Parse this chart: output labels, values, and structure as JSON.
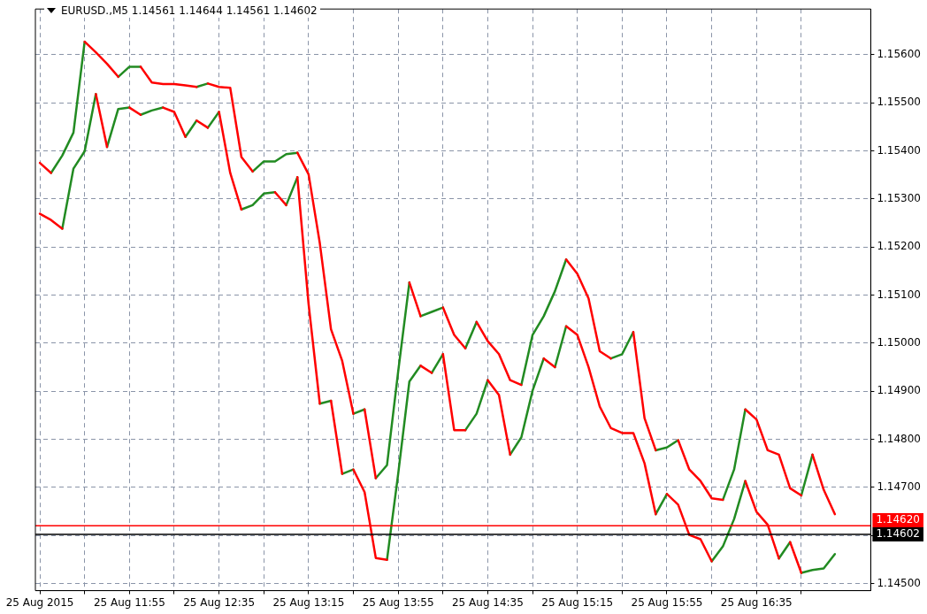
{
  "chart_data": {
    "type": "line",
    "title": "EURUSD.,M5  1.14561 1.14644 1.14561 1.14602",
    "xlim": [
      "2015-08-25T11:13",
      "2015-08-25T17:26"
    ],
    "xticks": [
      {
        "value": "2015-08-25T11:15",
        "label": "25 Aug 2015"
      },
      {
        "value": "2015-08-25T11:35",
        "label": null
      },
      {
        "value": "2015-08-25T11:55",
        "label": "25 Aug 11:55"
      },
      {
        "value": "2015-08-25T12:15",
        "label": null
      },
      {
        "value": "2015-08-25T12:35",
        "label": "25 Aug 12:35"
      },
      {
        "value": "2015-08-25T12:55",
        "label": null
      },
      {
        "value": "2015-08-25T13:15",
        "label": "25 Aug 13:15"
      },
      {
        "value": "2015-08-25T13:35",
        "label": null
      },
      {
        "value": "2015-08-25T13:55",
        "label": "25 Aug 13:55"
      },
      {
        "value": "2015-08-25T14:15",
        "label": null
      },
      {
        "value": "2015-08-25T14:35",
        "label": "25 Aug 14:35"
      },
      {
        "value": "2015-08-25T14:55",
        "label": null
      },
      {
        "value": "2015-08-25T15:15",
        "label": "25 Aug 15:15"
      },
      {
        "value": "2015-08-25T15:35",
        "label": null
      },
      {
        "value": "2015-08-25T15:55",
        "label": "25 Aug 15:55"
      },
      {
        "value": "2015-08-25T16:15",
        "label": null
      },
      {
        "value": "2015-08-25T16:35",
        "label": "25 Aug 16:35"
      },
      {
        "value": "2015-08-25T16:55",
        "label": null
      }
    ],
    "series": [
      {
        "color": "#ff0000",
        "x": [
          "2015-08-25T11:15",
          "2015-08-25T11:20"
        ],
        "values": [
          1.15375,
          1.15354
        ]
      },
      {
        "color": "#ff0000",
        "x": [
          "2015-08-25T11:35",
          "2015-08-25T11:40",
          "2015-08-25T11:45",
          "2015-08-25T11:50"
        ],
        "values": [
          1.15627,
          1.15605,
          1.15581,
          1.15554
        ]
      },
      {
        "color": "#ff0000",
        "x": [
          "2015-08-25T12:00",
          "2015-08-25T12:05",
          "2015-08-25T12:10",
          "2015-08-25T12:15",
          "2015-08-25T12:20",
          "2015-08-25T12:25"
        ],
        "values": [
          1.15575,
          1.15542,
          1.15539,
          1.15539,
          1.15536,
          1.15533
        ]
      },
      {
        "color": "#ff0000",
        "x": [
          "2015-08-25T12:30",
          "2015-08-25T12:35",
          "2015-08-25T12:40",
          "2015-08-25T12:45",
          "2015-08-25T12:50"
        ],
        "values": [
          1.1554,
          1.15533,
          1.15531,
          1.15387,
          1.15357
        ]
      },
      {
        "color": "#ff0000",
        "x": [
          "2015-08-25T13:10",
          "2015-08-25T13:15",
          "2015-08-25T13:20",
          "2015-08-25T13:25",
          "2015-08-25T13:30",
          "2015-08-25T13:35"
        ],
        "values": [
          1.15396,
          1.15351,
          1.15208,
          1.15029,
          1.14963,
          1.14853
        ]
      },
      {
        "color": "#ff0000",
        "x": [
          "2015-08-25T13:40",
          "2015-08-25T13:45"
        ],
        "values": [
          1.14862,
          1.14719
        ]
      },
      {
        "color": "#ff0000",
        "x": [
          "2015-08-25T14:00",
          "2015-08-25T14:05"
        ],
        "values": [
          1.15126,
          1.15056
        ]
      },
      {
        "color": "#ff0000",
        "x": [
          "2015-08-25T14:15",
          "2015-08-25T14:20",
          "2015-08-25T14:25"
        ],
        "values": [
          1.15074,
          1.15017,
          1.14989
        ]
      },
      {
        "color": "#ff0000",
        "x": [
          "2015-08-25T14:30",
          "2015-08-25T14:35",
          "2015-08-25T14:40",
          "2015-08-25T14:45",
          "2015-08-25T14:50"
        ],
        "values": [
          1.15044,
          1.15004,
          1.14977,
          1.14923,
          1.14913
        ]
      },
      {
        "color": "#ff0000",
        "x": [
          "2015-08-25T15:10",
          "2015-08-25T15:15",
          "2015-08-25T15:20",
          "2015-08-25T15:25",
          "2015-08-25T15:30"
        ],
        "values": [
          1.15174,
          1.15144,
          1.15093,
          1.14983,
          1.14968
        ]
      },
      {
        "color": "#ff0000",
        "x": [
          "2015-08-25T15:40",
          "2015-08-25T15:45",
          "2015-08-25T15:50"
        ],
        "values": [
          1.15023,
          1.14844,
          1.14777
        ]
      },
      {
        "color": "#ff0000",
        "x": [
          "2015-08-25T16:00",
          "2015-08-25T16:05",
          "2015-08-25T16:10",
          "2015-08-25T16:15",
          "2015-08-25T16:20"
        ],
        "values": [
          1.14798,
          1.14737,
          1.14713,
          1.14677,
          1.14674
        ]
      },
      {
        "color": "#ff0000",
        "x": [
          "2015-08-25T16:30",
          "2015-08-25T16:35",
          "2015-08-25T16:40",
          "2015-08-25T16:45",
          "2015-08-25T16:50",
          "2015-08-25T16:55"
        ],
        "values": [
          1.14862,
          1.14841,
          1.14777,
          1.14768,
          1.14698,
          1.14683
        ]
      },
      {
        "color": "#ff0000",
        "x": [
          "2015-08-25T17:00",
          "2015-08-25T17:05",
          "2015-08-25T17:10"
        ],
        "values": [
          1.14768,
          1.14695,
          1.14644
        ]
      },
      {
        "color": "#228b22",
        "x": [
          "2015-08-25T11:20",
          "2015-08-25T11:25",
          "2015-08-25T11:30",
          "2015-08-25T11:35"
        ],
        "values": [
          1.15354,
          1.1539,
          1.15438,
          1.15627
        ]
      },
      {
        "color": "#228b22",
        "x": [
          "2015-08-25T11:50",
          "2015-08-25T11:55",
          "2015-08-25T12:00"
        ],
        "values": [
          1.15554,
          1.15575,
          1.15575
        ]
      },
      {
        "color": "#228b22",
        "x": [
          "2015-08-25T12:25",
          "2015-08-25T12:30"
        ],
        "values": [
          1.15533,
          1.1554
        ]
      },
      {
        "color": "#228b22",
        "x": [
          "2015-08-25T12:50",
          "2015-08-25T12:55",
          "2015-08-25T13:00",
          "2015-08-25T13:05",
          "2015-08-25T13:10"
        ],
        "values": [
          1.15357,
          1.15378,
          1.15378,
          1.15393,
          1.15396
        ]
      },
      {
        "color": "#228b22",
        "x": [
          "2015-08-25T13:35",
          "2015-08-25T13:40"
        ],
        "values": [
          1.14853,
          1.14862
        ]
      },
      {
        "color": "#228b22",
        "x": [
          "2015-08-25T13:45",
          "2015-08-25T13:50",
          "2015-08-25T13:55",
          "2015-08-25T14:00"
        ],
        "values": [
          1.14719,
          1.14746,
          1.14941,
          1.15126
        ]
      },
      {
        "color": "#228b22",
        "x": [
          "2015-08-25T14:05",
          "2015-08-25T14:10",
          "2015-08-25T14:15"
        ],
        "values": [
          1.15056,
          1.15065,
          1.15074
        ]
      },
      {
        "color": "#228b22",
        "x": [
          "2015-08-25T14:25",
          "2015-08-25T14:30"
        ],
        "values": [
          1.14989,
          1.15044
        ]
      },
      {
        "color": "#228b22",
        "x": [
          "2015-08-25T14:50",
          "2015-08-25T14:55",
          "2015-08-25T15:00",
          "2015-08-25T15:05",
          "2015-08-25T15:10"
        ],
        "values": [
          1.14913,
          1.15017,
          1.15056,
          1.15108,
          1.15174
        ]
      },
      {
        "color": "#228b22",
        "x": [
          "2015-08-25T15:30",
          "2015-08-25T15:35",
          "2015-08-25T15:40"
        ],
        "values": [
          1.14968,
          1.14977,
          1.15023
        ]
      },
      {
        "color": "#228b22",
        "x": [
          "2015-08-25T15:50",
          "2015-08-25T15:55",
          "2015-08-25T16:00"
        ],
        "values": [
          1.14777,
          1.14783,
          1.14798
        ]
      },
      {
        "color": "#228b22",
        "x": [
          "2015-08-25T16:20",
          "2015-08-25T16:25",
          "2015-08-25T16:30"
        ],
        "values": [
          1.14674,
          1.14737,
          1.14862
        ]
      },
      {
        "color": "#228b22",
        "x": [
          "2015-08-25T16:55",
          "2015-08-25T17:00"
        ],
        "values": [
          1.14683,
          1.14768
        ]
      },
      {
        "color": "#ff0000",
        "x": [
          "2015-08-25T11:15",
          "2015-08-25T11:20",
          "2015-08-25T11:25"
        ],
        "values": [
          1.15269,
          1.15256,
          1.15238
        ]
      },
      {
        "color": "#ff0000",
        "x": [
          "2015-08-25T11:40",
          "2015-08-25T11:45"
        ],
        "values": [
          1.15518,
          1.15408
        ]
      },
      {
        "color": "#ff0000",
        "x": [
          "2015-08-25T11:55",
          "2015-08-25T12:00"
        ],
        "values": [
          1.1549,
          1.15475
        ]
      },
      {
        "color": "#ff0000",
        "x": [
          "2015-08-25T12:10",
          "2015-08-25T12:15",
          "2015-08-25T12:20"
        ],
        "values": [
          1.1549,
          1.15481,
          1.15429
        ]
      },
      {
        "color": "#ff0000",
        "x": [
          "2015-08-25T12:25",
          "2015-08-25T12:30"
        ],
        "values": [
          1.15463,
          1.15448
        ]
      },
      {
        "color": "#ff0000",
        "x": [
          "2015-08-25T12:35",
          "2015-08-25T12:40",
          "2015-08-25T12:45"
        ],
        "values": [
          1.15481,
          1.15354,
          1.15278
        ]
      },
      {
        "color": "#ff0000",
        "x": [
          "2015-08-25T13:00",
          "2015-08-25T13:05"
        ],
        "values": [
          1.15314,
          1.15287
        ]
      },
      {
        "color": "#ff0000",
        "x": [
          "2015-08-25T13:10",
          "2015-08-25T13:15",
          "2015-08-25T13:20"
        ],
        "values": [
          1.15345,
          1.15081,
          1.14874
        ]
      },
      {
        "color": "#ff0000",
        "x": [
          "2015-08-25T13:25",
          "2015-08-25T13:30"
        ],
        "values": [
          1.1488,
          1.14728
        ]
      },
      {
        "color": "#ff0000",
        "x": [
          "2015-08-25T13:35",
          "2015-08-25T13:40",
          "2015-08-25T13:45",
          "2015-08-25T13:50"
        ],
        "values": [
          1.14737,
          1.1469,
          1.14553,
          1.14549
        ]
      },
      {
        "color": "#ff0000",
        "x": [
          "2015-08-25T14:05",
          "2015-08-25T14:10"
        ],
        "values": [
          1.14953,
          1.14938
        ]
      },
      {
        "color": "#ff0000",
        "x": [
          "2015-08-25T14:15",
          "2015-08-25T14:20",
          "2015-08-25T14:25"
        ],
        "values": [
          1.14977,
          1.14819,
          1.14819
        ]
      },
      {
        "color": "#ff0000",
        "x": [
          "2015-08-25T14:35",
          "2015-08-25T14:40",
          "2015-08-25T14:45"
        ],
        "values": [
          1.14923,
          1.14892,
          1.14768
        ]
      },
      {
        "color": "#ff0000",
        "x": [
          "2015-08-25T15:00",
          "2015-08-25T15:05"
        ],
        "values": [
          1.14968,
          1.1495
        ]
      },
      {
        "color": "#ff0000",
        "x": [
          "2015-08-25T15:10",
          "2015-08-25T15:15",
          "2015-08-25T15:20",
          "2015-08-25T15:25",
          "2015-08-25T15:30",
          "2015-08-25T15:35",
          "2015-08-25T15:40",
          "2015-08-25T15:45",
          "2015-08-25T15:50"
        ],
        "values": [
          1.15035,
          1.15017,
          1.1495,
          1.14868,
          1.14823,
          1.14813,
          1.14813,
          1.1475,
          1.14644
        ]
      },
      {
        "color": "#ff0000",
        "x": [
          "2015-08-25T15:55",
          "2015-08-25T16:00",
          "2015-08-25T16:05",
          "2015-08-25T16:10",
          "2015-08-25T16:15"
        ],
        "values": [
          1.14686,
          1.14664,
          1.14601,
          1.14592,
          1.14546
        ]
      },
      {
        "color": "#ff0000",
        "x": [
          "2015-08-25T16:30",
          "2015-08-25T16:35",
          "2015-08-25T16:40",
          "2015-08-25T16:45"
        ],
        "values": [
          1.14713,
          1.14649,
          1.14622,
          1.14552
        ]
      },
      {
        "color": "#ff0000",
        "x": [
          "2015-08-25T16:50",
          "2015-08-25T16:55"
        ],
        "values": [
          1.14586,
          1.14522
        ]
      },
      {
        "color": "#228b22",
        "x": [
          "2015-08-25T11:25",
          "2015-08-25T11:30",
          "2015-08-25T11:35",
          "2015-08-25T11:40"
        ],
        "values": [
          1.15238,
          1.15363,
          1.15399,
          1.15518
        ]
      },
      {
        "color": "#228b22",
        "x": [
          "2015-08-25T11:45",
          "2015-08-25T11:50",
          "2015-08-25T11:55"
        ],
        "values": [
          1.15408,
          1.15487,
          1.1549
        ]
      },
      {
        "color": "#228b22",
        "x": [
          "2015-08-25T12:00",
          "2015-08-25T12:05",
          "2015-08-25T12:10"
        ],
        "values": [
          1.15475,
          1.15484,
          1.1549
        ]
      },
      {
        "color": "#228b22",
        "x": [
          "2015-08-25T12:20",
          "2015-08-25T12:25"
        ],
        "values": [
          1.15429,
          1.15463
        ]
      },
      {
        "color": "#228b22",
        "x": [
          "2015-08-25T12:30",
          "2015-08-25T12:35"
        ],
        "values": [
          1.15448,
          1.15481
        ]
      },
      {
        "color": "#228b22",
        "x": [
          "2015-08-25T12:45",
          "2015-08-25T12:50",
          "2015-08-25T12:55",
          "2015-08-25T13:00"
        ],
        "values": [
          1.15278,
          1.15287,
          1.15311,
          1.15314
        ]
      },
      {
        "color": "#228b22",
        "x": [
          "2015-08-25T13:05",
          "2015-08-25T13:10"
        ],
        "values": [
          1.15287,
          1.15345
        ]
      },
      {
        "color": "#228b22",
        "x": [
          "2015-08-25T13:20",
          "2015-08-25T13:25"
        ],
        "values": [
          1.14874,
          1.1488
        ]
      },
      {
        "color": "#228b22",
        "x": [
          "2015-08-25T13:30",
          "2015-08-25T13:35"
        ],
        "values": [
          1.14728,
          1.14737
        ]
      },
      {
        "color": "#228b22",
        "x": [
          "2015-08-25T13:50",
          "2015-08-25T13:55",
          "2015-08-25T14:00",
          "2015-08-25T14:05"
        ],
        "values": [
          1.14549,
          1.14728,
          1.1492,
          1.14953
        ]
      },
      {
        "color": "#228b22",
        "x": [
          "2015-08-25T14:10",
          "2015-08-25T14:15"
        ],
        "values": [
          1.14938,
          1.14977
        ]
      },
      {
        "color": "#228b22",
        "x": [
          "2015-08-25T14:25",
          "2015-08-25T14:30",
          "2015-08-25T14:35"
        ],
        "values": [
          1.14819,
          1.14853,
          1.14923
        ]
      },
      {
        "color": "#228b22",
        "x": [
          "2015-08-25T14:45",
          "2015-08-25T14:50",
          "2015-08-25T14:55",
          "2015-08-25T15:00"
        ],
        "values": [
          1.14768,
          1.14804,
          1.14901,
          1.14968
        ]
      },
      {
        "color": "#228b22",
        "x": [
          "2015-08-25T15:05",
          "2015-08-25T15:10"
        ],
        "values": [
          1.1495,
          1.15035
        ]
      },
      {
        "color": "#228b22",
        "x": [
          "2015-08-25T15:50",
          "2015-08-25T15:55"
        ],
        "values": [
          1.14644,
          1.14686
        ]
      },
      {
        "color": "#228b22",
        "x": [
          "2015-08-25T16:15",
          "2015-08-25T16:20",
          "2015-08-25T16:25",
          "2015-08-25T16:30"
        ],
        "values": [
          1.14546,
          1.14577,
          1.14634,
          1.14713
        ]
      },
      {
        "color": "#228b22",
        "x": [
          "2015-08-25T16:45",
          "2015-08-25T16:50"
        ],
        "values": [
          1.14552,
          1.14586
        ]
      },
      {
        "color": "#228b22",
        "x": [
          "2015-08-25T16:55",
          "2015-08-25T17:00",
          "2015-08-25T17:05",
          "2015-08-25T17:10"
        ],
        "values": [
          1.14522,
          1.14528,
          1.14531,
          1.14561
        ]
      }
    ],
    "ylim": [
      1.14485,
      1.15695
    ],
    "yticks": [
      {
        "value": 1.145,
        "label": "1.14500"
      },
      {
        "value": 1.146,
        "label": null
      },
      {
        "value": 1.147,
        "label": "1.14700"
      },
      {
        "value": 1.148,
        "label": "1.14800"
      },
      {
        "value": 1.149,
        "label": "1.14900"
      },
      {
        "value": 1.15,
        "label": "1.15000"
      },
      {
        "value": 1.151,
        "label": "1.15100"
      },
      {
        "value": 1.152,
        "label": "1.15200"
      },
      {
        "value": 1.153,
        "label": "1.15300"
      },
      {
        "value": 1.154,
        "label": "1.15400"
      },
      {
        "value": 1.155,
        "label": "1.15500"
      },
      {
        "value": 1.156,
        "label": "1.15600"
      }
    ],
    "ref_lines": [
      {
        "axis": "y",
        "value": 1.1462,
        "label": "1.14620",
        "color": "#ff0000"
      },
      {
        "axis": "y",
        "value": 1.14602,
        "label": "1.14602",
        "color": "#000000"
      }
    ],
    "grid": true,
    "legend": false,
    "marker": "none",
    "line_style": "solid"
  }
}
